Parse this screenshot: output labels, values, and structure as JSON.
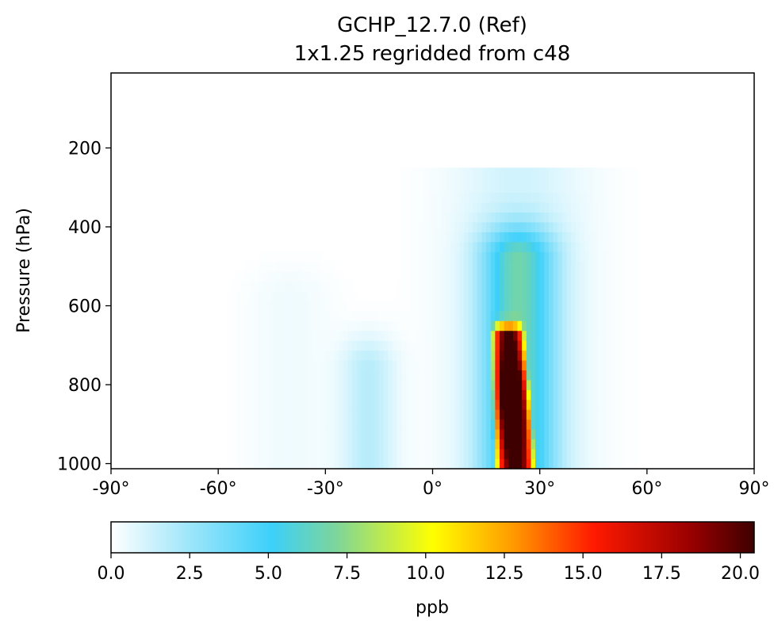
{
  "chart_data": {
    "type": "heatmap",
    "title": "GCHP_12.7.0 (Ref)",
    "subtitle": "1x1.25 regridded from c48",
    "xlabel": "",
    "ylabel": "Pressure (hPa)",
    "xlim": [
      -90,
      90
    ],
    "ylim": [
      1013,
      10
    ],
    "x_ticks": [
      -90,
      -60,
      -30,
      0,
      30,
      60,
      90
    ],
    "x_tick_labels": [
      "-90°",
      "-60°",
      "-30°",
      "0°",
      "30°",
      "60°",
      "90°"
    ],
    "y_ticks": [
      200,
      400,
      600,
      800,
      1000
    ],
    "y_tick_labels": [
      "200",
      "400",
      "600",
      "800",
      "1000"
    ],
    "latitude_resolution_deg": 1.25,
    "pressure_levels_hPa": [
      1000,
      975,
      950,
      925,
      900,
      875,
      850,
      825,
      800,
      775,
      750,
      725,
      700,
      675,
      650,
      625,
      600,
      575,
      550,
      525,
      500,
      475,
      450,
      425,
      400,
      375,
      350,
      325,
      300
    ],
    "features": [
      {
        "lat_center": 23,
        "lat_halfwidth_bottom": 6,
        "lat_halfwidth_top": 5,
        "lat_tilt_per_100hPa": -0.6,
        "p_bottom": 1000,
        "p_top": 670,
        "peak_pressure": 840,
        "peak_value": 19.5,
        "kind": "core"
      },
      {
        "lat_center": 24,
        "lat_halfwidth": 12,
        "p_bottom": 1000,
        "p_top": 480,
        "peak_value": 5.6,
        "kind": "halo"
      },
      {
        "lat_center": 24,
        "lat_halfwidth": 22,
        "p_bottom": 1000,
        "p_top": 320,
        "peak_value": 1.2,
        "kind": "faint-halo"
      },
      {
        "lat_center": -18,
        "lat_halfwidth": 9,
        "p_bottom": 1000,
        "p_top": 760,
        "peak_value": 1.8,
        "kind": "southern-plume"
      },
      {
        "lat_center": -40,
        "lat_halfwidth": 14,
        "p_bottom": 900,
        "p_top": 580,
        "peak_value": 0.4,
        "kind": "faint-southern"
      }
    ],
    "colorbar": {
      "label": "ppb",
      "vmin": 0.0,
      "vmax": 20.44,
      "ticks": [
        0.0,
        2.5,
        5.0,
        7.5,
        10.0,
        12.5,
        15.0,
        17.5,
        20.0
      ],
      "tick_labels": [
        "0.0",
        "2.5",
        "5.0",
        "7.5",
        "10.0",
        "12.5",
        "15.0",
        "17.5",
        "20.0"
      ],
      "colormap_stops": [
        [
          0.0,
          "#ffffff"
        ],
        [
          0.12,
          "#9fe6fa"
        ],
        [
          0.25,
          "#3cd0fa"
        ],
        [
          0.35,
          "#7dd59a"
        ],
        [
          0.5,
          "#ffff00"
        ],
        [
          0.62,
          "#ff9f00"
        ],
        [
          0.75,
          "#ff1a00"
        ],
        [
          0.9,
          "#9a0000"
        ],
        [
          1.0,
          "#3e0000"
        ]
      ]
    },
    "colors": {
      "axis": "#000000",
      "background": "#ffffff"
    }
  }
}
